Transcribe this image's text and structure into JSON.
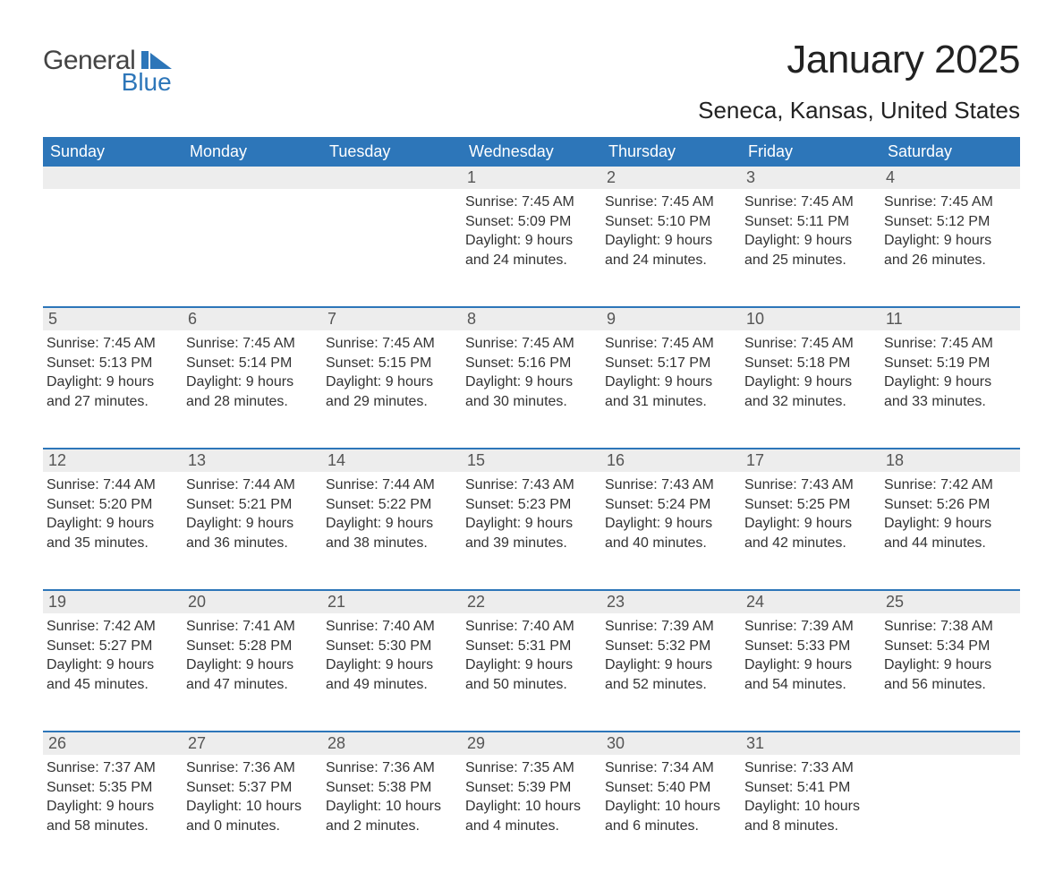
{
  "brand": {
    "word1": "General",
    "word2": "Blue",
    "icon_color": "#2d76b9"
  },
  "title": "January 2025",
  "location": "Seneca, Kansas, United States",
  "colors": {
    "header_bg": "#2d76b9",
    "header_text": "#ffffff",
    "daynum_bg": "#ededed",
    "row_border": "#2d76b9",
    "body_text": "#333333",
    "page_bg": "#ffffff"
  },
  "day_headers": [
    "Sunday",
    "Monday",
    "Tuesday",
    "Wednesday",
    "Thursday",
    "Friday",
    "Saturday"
  ],
  "weeks": [
    [
      null,
      null,
      null,
      {
        "n": "1",
        "sunrise": "Sunrise: 7:45 AM",
        "sunset": "Sunset: 5:09 PM",
        "d1": "Daylight: 9 hours",
        "d2": "and 24 minutes."
      },
      {
        "n": "2",
        "sunrise": "Sunrise: 7:45 AM",
        "sunset": "Sunset: 5:10 PM",
        "d1": "Daylight: 9 hours",
        "d2": "and 24 minutes."
      },
      {
        "n": "3",
        "sunrise": "Sunrise: 7:45 AM",
        "sunset": "Sunset: 5:11 PM",
        "d1": "Daylight: 9 hours",
        "d2": "and 25 minutes."
      },
      {
        "n": "4",
        "sunrise": "Sunrise: 7:45 AM",
        "sunset": "Sunset: 5:12 PM",
        "d1": "Daylight: 9 hours",
        "d2": "and 26 minutes."
      }
    ],
    [
      {
        "n": "5",
        "sunrise": "Sunrise: 7:45 AM",
        "sunset": "Sunset: 5:13 PM",
        "d1": "Daylight: 9 hours",
        "d2": "and 27 minutes."
      },
      {
        "n": "6",
        "sunrise": "Sunrise: 7:45 AM",
        "sunset": "Sunset: 5:14 PM",
        "d1": "Daylight: 9 hours",
        "d2": "and 28 minutes."
      },
      {
        "n": "7",
        "sunrise": "Sunrise: 7:45 AM",
        "sunset": "Sunset: 5:15 PM",
        "d1": "Daylight: 9 hours",
        "d2": "and 29 minutes."
      },
      {
        "n": "8",
        "sunrise": "Sunrise: 7:45 AM",
        "sunset": "Sunset: 5:16 PM",
        "d1": "Daylight: 9 hours",
        "d2": "and 30 minutes."
      },
      {
        "n": "9",
        "sunrise": "Sunrise: 7:45 AM",
        "sunset": "Sunset: 5:17 PM",
        "d1": "Daylight: 9 hours",
        "d2": "and 31 minutes."
      },
      {
        "n": "10",
        "sunrise": "Sunrise: 7:45 AM",
        "sunset": "Sunset: 5:18 PM",
        "d1": "Daylight: 9 hours",
        "d2": "and 32 minutes."
      },
      {
        "n": "11",
        "sunrise": "Sunrise: 7:45 AM",
        "sunset": "Sunset: 5:19 PM",
        "d1": "Daylight: 9 hours",
        "d2": "and 33 minutes."
      }
    ],
    [
      {
        "n": "12",
        "sunrise": "Sunrise: 7:44 AM",
        "sunset": "Sunset: 5:20 PM",
        "d1": "Daylight: 9 hours",
        "d2": "and 35 minutes."
      },
      {
        "n": "13",
        "sunrise": "Sunrise: 7:44 AM",
        "sunset": "Sunset: 5:21 PM",
        "d1": "Daylight: 9 hours",
        "d2": "and 36 minutes."
      },
      {
        "n": "14",
        "sunrise": "Sunrise: 7:44 AM",
        "sunset": "Sunset: 5:22 PM",
        "d1": "Daylight: 9 hours",
        "d2": "and 38 minutes."
      },
      {
        "n": "15",
        "sunrise": "Sunrise: 7:43 AM",
        "sunset": "Sunset: 5:23 PM",
        "d1": "Daylight: 9 hours",
        "d2": "and 39 minutes."
      },
      {
        "n": "16",
        "sunrise": "Sunrise: 7:43 AM",
        "sunset": "Sunset: 5:24 PM",
        "d1": "Daylight: 9 hours",
        "d2": "and 40 minutes."
      },
      {
        "n": "17",
        "sunrise": "Sunrise: 7:43 AM",
        "sunset": "Sunset: 5:25 PM",
        "d1": "Daylight: 9 hours",
        "d2": "and 42 minutes."
      },
      {
        "n": "18",
        "sunrise": "Sunrise: 7:42 AM",
        "sunset": "Sunset: 5:26 PM",
        "d1": "Daylight: 9 hours",
        "d2": "and 44 minutes."
      }
    ],
    [
      {
        "n": "19",
        "sunrise": "Sunrise: 7:42 AM",
        "sunset": "Sunset: 5:27 PM",
        "d1": "Daylight: 9 hours",
        "d2": "and 45 minutes."
      },
      {
        "n": "20",
        "sunrise": "Sunrise: 7:41 AM",
        "sunset": "Sunset: 5:28 PM",
        "d1": "Daylight: 9 hours",
        "d2": "and 47 minutes."
      },
      {
        "n": "21",
        "sunrise": "Sunrise: 7:40 AM",
        "sunset": "Sunset: 5:30 PM",
        "d1": "Daylight: 9 hours",
        "d2": "and 49 minutes."
      },
      {
        "n": "22",
        "sunrise": "Sunrise: 7:40 AM",
        "sunset": "Sunset: 5:31 PM",
        "d1": "Daylight: 9 hours",
        "d2": "and 50 minutes."
      },
      {
        "n": "23",
        "sunrise": "Sunrise: 7:39 AM",
        "sunset": "Sunset: 5:32 PM",
        "d1": "Daylight: 9 hours",
        "d2": "and 52 minutes."
      },
      {
        "n": "24",
        "sunrise": "Sunrise: 7:39 AM",
        "sunset": "Sunset: 5:33 PM",
        "d1": "Daylight: 9 hours",
        "d2": "and 54 minutes."
      },
      {
        "n": "25",
        "sunrise": "Sunrise: 7:38 AM",
        "sunset": "Sunset: 5:34 PM",
        "d1": "Daylight: 9 hours",
        "d2": "and 56 minutes."
      }
    ],
    [
      {
        "n": "26",
        "sunrise": "Sunrise: 7:37 AM",
        "sunset": "Sunset: 5:35 PM",
        "d1": "Daylight: 9 hours",
        "d2": "and 58 minutes."
      },
      {
        "n": "27",
        "sunrise": "Sunrise: 7:36 AM",
        "sunset": "Sunset: 5:37 PM",
        "d1": "Daylight: 10 hours",
        "d2": "and 0 minutes."
      },
      {
        "n": "28",
        "sunrise": "Sunrise: 7:36 AM",
        "sunset": "Sunset: 5:38 PM",
        "d1": "Daylight: 10 hours",
        "d2": "and 2 minutes."
      },
      {
        "n": "29",
        "sunrise": "Sunrise: 7:35 AM",
        "sunset": "Sunset: 5:39 PM",
        "d1": "Daylight: 10 hours",
        "d2": "and 4 minutes."
      },
      {
        "n": "30",
        "sunrise": "Sunrise: 7:34 AM",
        "sunset": "Sunset: 5:40 PM",
        "d1": "Daylight: 10 hours",
        "d2": "and 6 minutes."
      },
      {
        "n": "31",
        "sunrise": "Sunrise: 7:33 AM",
        "sunset": "Sunset: 5:41 PM",
        "d1": "Daylight: 10 hours",
        "d2": "and 8 minutes."
      },
      null
    ]
  ]
}
